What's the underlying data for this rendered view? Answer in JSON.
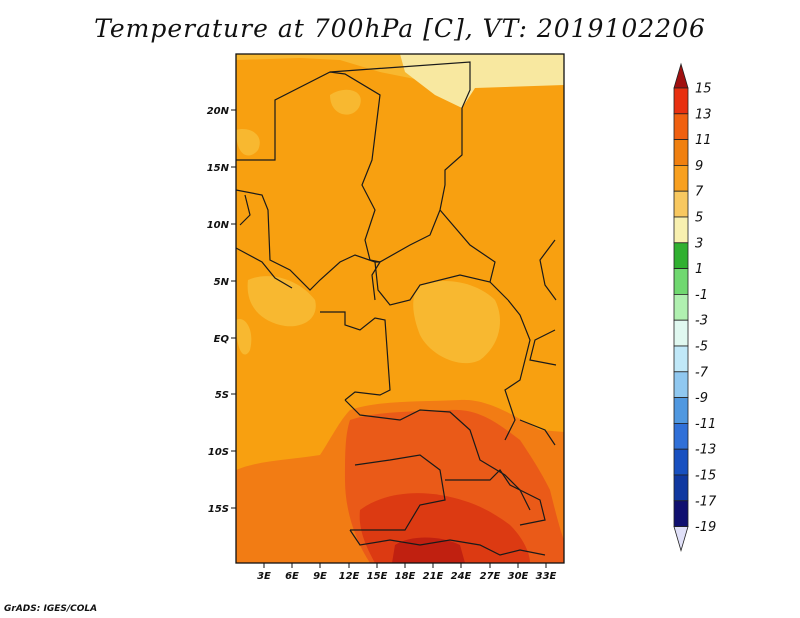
{
  "title": "Temperature at 700hPa [C], VT: 2019102206",
  "credit": "GrADS: IGES/COLA",
  "lat_ticks": [
    "20N",
    "15N",
    "10N",
    "5N",
    "EQ",
    "5S",
    "10S",
    "15S"
  ],
  "lon_ticks": [
    "3E",
    "6E",
    "9E",
    "12E",
    "15E",
    "18E",
    "21E",
    "24E",
    "27E",
    "30E",
    "33E"
  ],
  "colorbar": {
    "labels": [
      "15",
      "13",
      "11",
      "9",
      "7",
      "5",
      "3",
      "1",
      "-1",
      "-3",
      "-5",
      "-7",
      "-9",
      "-11",
      "-13",
      "-15",
      "-17",
      "-19"
    ],
    "colors": [
      "#a01010",
      "#e83010",
      "#f06010",
      "#f08010",
      "#f8a020",
      "#f8c860",
      "#f8f0b0",
      "#30b030",
      "#70d870",
      "#b0f0b0",
      "#e0f8f0",
      "#c0e8f8",
      "#90c8f0",
      "#5098e0",
      "#3070d8",
      "#1850c0",
      "#1038a0",
      "#101070",
      "#e0e0f8"
    ]
  }
}
